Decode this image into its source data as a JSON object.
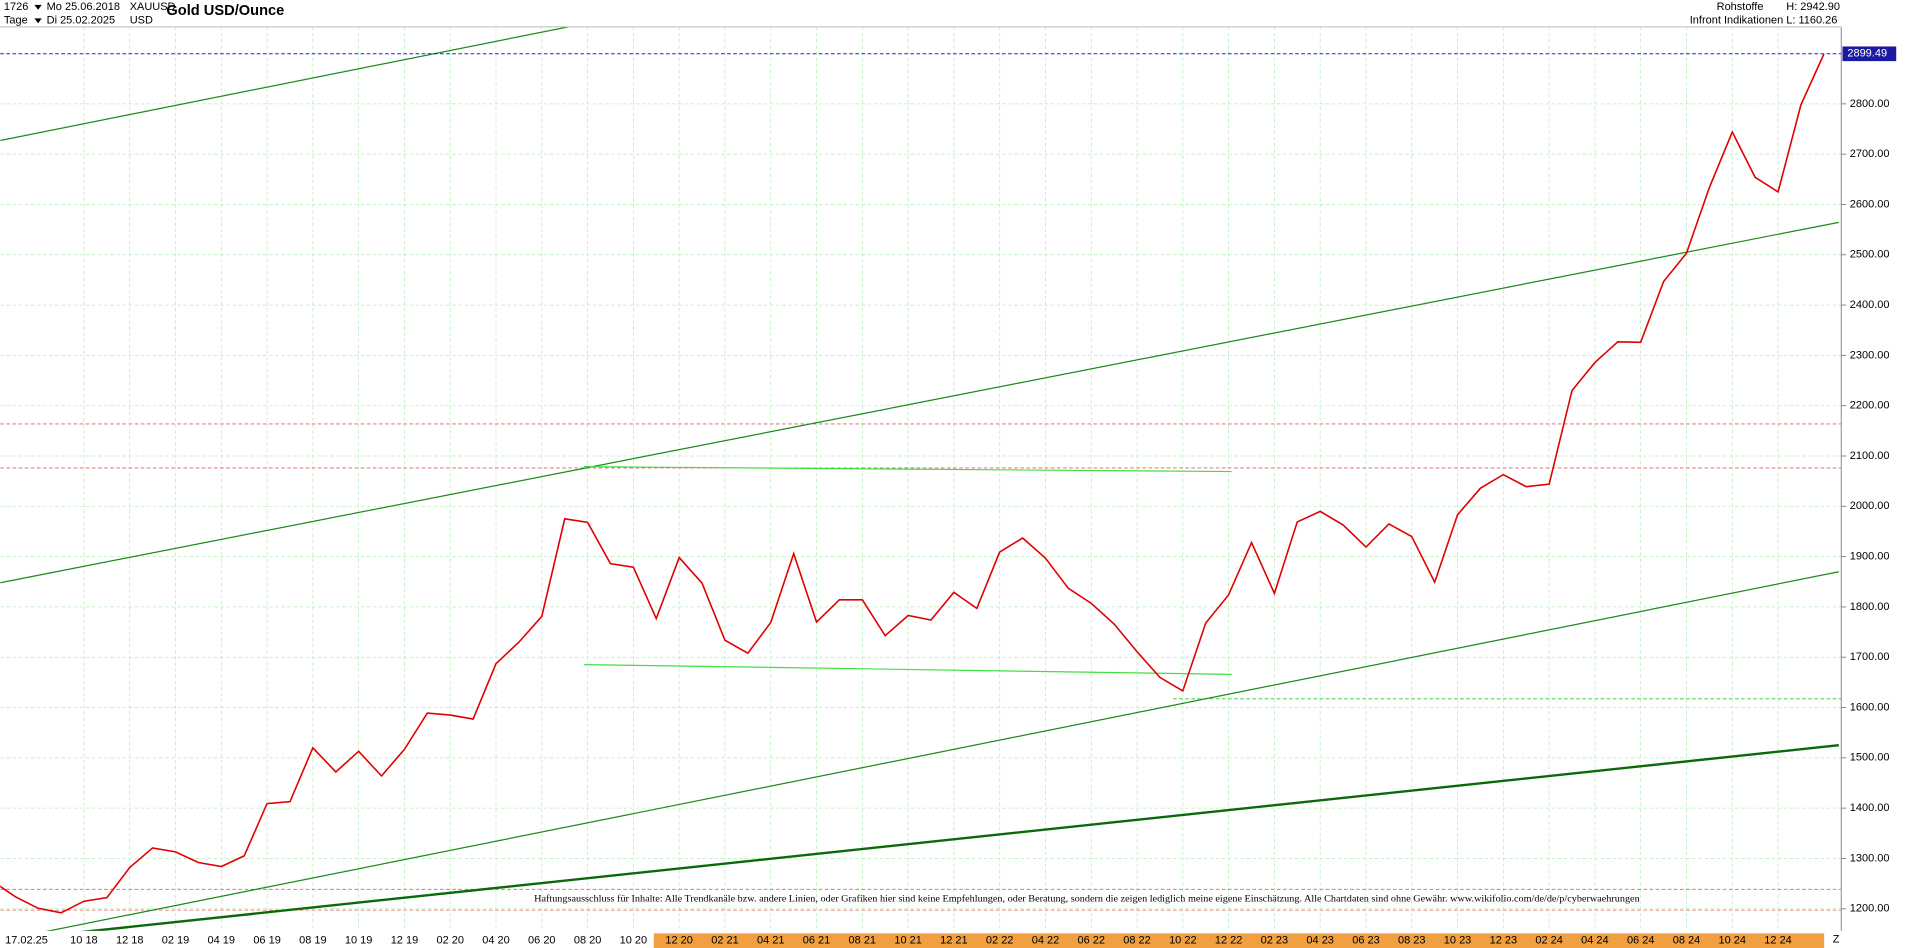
{
  "chart_data": {
    "type": "line",
    "title": "Gold USD/Ounce",
    "bar_count": "1726",
    "start_date": "Mo 25.06.2018",
    "end_date": "Di 25.02.2025",
    "interval": "Tage",
    "symbol": "XAUUSD",
    "currency": "USD",
    "group": "Rohstoffe",
    "source": "Infront Indikationen",
    "high": "H: 2942.90",
    "low": "L: 1160.26",
    "crosshair_date": "17.02.25",
    "corner_label": "Z",
    "last_price": 2899.49,
    "disclaimer": "Haftungsausschluss für Inhalte: Alle Trendkanäle bzw. andere Linien, oder Grafiken hier sind keine Empfehlungen, oder Beratung, sondern die zeigen lediglich meine eigene Einschätzung. Alle Chartdaten sind ohne Gewähr.  www.wikifolio.com/de/de/p/cyberwaehrungen",
    "categories": [
      null,
      null,
      null,
      null,
      "10 18",
      null,
      "12 18",
      null,
      "02 19",
      null,
      "04 19",
      null,
      "06 19",
      null,
      "08 19",
      null,
      "10 19",
      null,
      "12 19",
      null,
      "02 20",
      null,
      "04 20",
      null,
      "06 20",
      null,
      "08 20",
      null,
      "10 20",
      null,
      "12 20",
      null,
      "02 21",
      null,
      "04 21",
      null,
      "06 21",
      null,
      "08 21",
      null,
      "10 21",
      null,
      "12 21",
      null,
      "02 22",
      null,
      "04 22",
      null,
      "06 22",
      null,
      "08 22",
      null,
      "10 22",
      null,
      "12 22",
      null,
      "02 23",
      null,
      "04 23",
      null,
      "06 23",
      null,
      "08 23",
      null,
      "10 23",
      null,
      "12 23",
      null,
      "02 24",
      null,
      "04 24",
      null,
      "06 24",
      null,
      "08 24",
      null,
      "10 24",
      null,
      "12 24",
      null,
      null
    ],
    "values": [
      1255,
      1224,
      1201,
      1192,
      1215,
      1222,
      1282,
      1321,
      1313,
      1292,
      1284,
      1305,
      1409,
      1413,
      1520,
      1472,
      1513,
      1464,
      1517,
      1589,
      1585,
      1577,
      1687,
      1730,
      1781,
      1975,
      1968,
      1886,
      1879,
      1777,
      1898,
      1847,
      1734,
      1708,
      1769,
      1906,
      1770,
      1814,
      1814,
      1743,
      1783,
      1774,
      1829,
      1797,
      1909,
      1937,
      1897,
      1837,
      1807,
      1766,
      1711,
      1660,
      1633,
      1768,
      1824,
      1928,
      1827,
      1969,
      1990,
      1963,
      1919,
      1965,
      1940,
      1849,
      1983,
      2036,
      2063,
      2039,
      2044,
      2230,
      2286,
      2327,
      2326,
      2447,
      2503,
      2634,
      2744,
      2654,
      2625,
      2798,
      2899
    ],
    "color": "#e00000",
    "ylim": [
      1156,
      2953
    ],
    "yticks": [
      {
        "value": 1200,
        "label": "1200.00"
      },
      {
        "value": 1300,
        "label": "1300.00"
      },
      {
        "value": 1400,
        "label": "1400.00"
      },
      {
        "value": 1500,
        "label": "1500.00"
      },
      {
        "value": 1600,
        "label": "1600.00"
      },
      {
        "value": 1700,
        "label": "1700.00"
      },
      {
        "value": 1800,
        "label": "1800.00"
      },
      {
        "value": 1900,
        "label": "1900.00"
      },
      {
        "value": 2000,
        "label": "2000.00"
      },
      {
        "value": 2100,
        "label": "2100.00"
      },
      {
        "value": 2200,
        "label": "2200.00"
      },
      {
        "value": 2300,
        "label": "2300.00"
      },
      {
        "value": 2400,
        "label": "2400.00"
      },
      {
        "value": 2500,
        "label": "2500.00"
      },
      {
        "value": 2600,
        "label": "2600.00"
      },
      {
        "value": 2700,
        "label": "2700.00"
      },
      {
        "value": 2800,
        "label": "2800.00"
      }
    ],
    "grid": true
  }
}
